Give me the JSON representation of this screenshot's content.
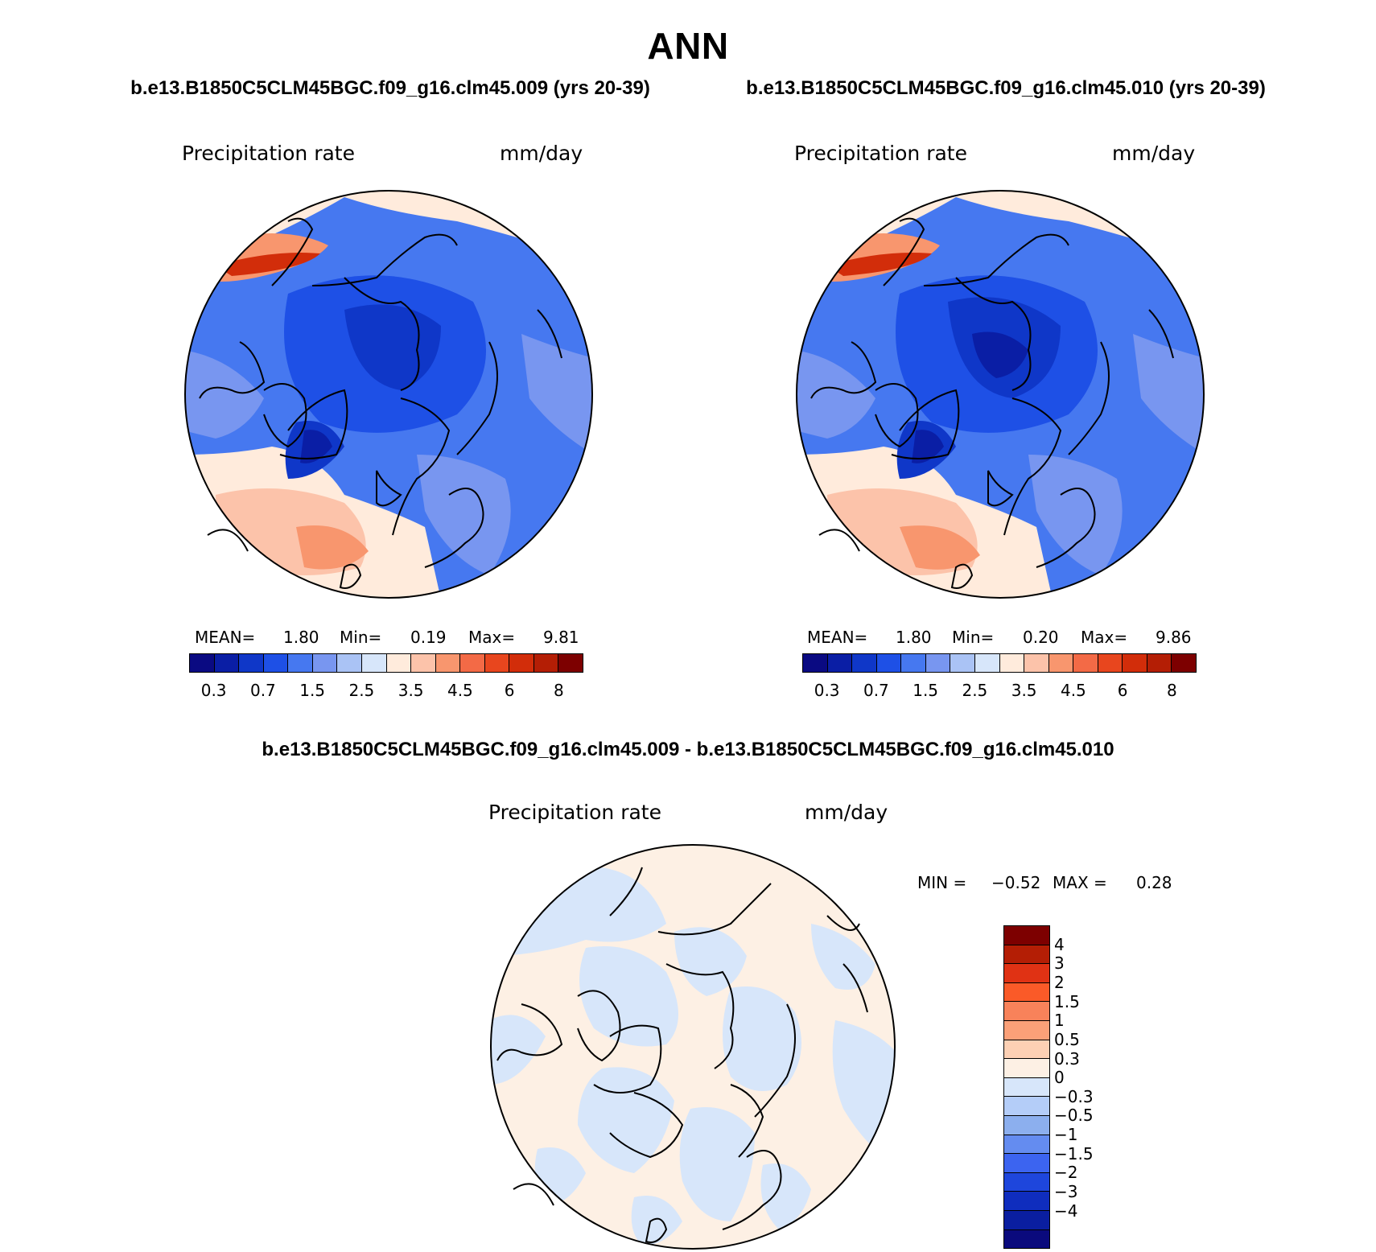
{
  "season_title": "ANN",
  "panels": [
    {
      "case_title": "b.e13.B1850C5CLM45BGC.f09_g16.clm45.009 (yrs 20-39)",
      "variable": "Precipitation rate",
      "units": "mm/day",
      "stats": {
        "mean_label": "MEAN=",
        "mean": "1.80",
        "min_label": "Min=",
        "min": "0.19",
        "max_label": "Max=",
        "max": "9.81"
      }
    },
    {
      "case_title": "b.e13.B1850C5CLM45BGC.f09_g16.clm45.010 (yrs 20-39)",
      "variable": "Precipitation rate",
      "units": "mm/day",
      "stats": {
        "mean_label": "MEAN=",
        "mean": "1.80",
        "min_label": "Min=",
        "min": "0.20",
        "max_label": "Max=",
        "max": "9.86"
      }
    }
  ],
  "diff_panel": {
    "title": "b.e13.B1850C5CLM45BGC.f09_g16.clm45.009 - b.e13.B1850C5CLM45BGC.f09_g16.clm45.010",
    "variable": "Precipitation rate",
    "units": "mm/day",
    "stats": {
      "min_label": "MIN =",
      "min": "−0.52",
      "max_label": "MAX =",
      "max": "0.28"
    }
  },
  "colorbar": {
    "colors": [
      "#0a0a82",
      "#0a1ea5",
      "#0f37c8",
      "#1e50e6",
      "#4678f0",
      "#7896f0",
      "#aac3f5",
      "#d7e6fa",
      "#ffebdc",
      "#fcc3aa",
      "#f8966e",
      "#f36a46",
      "#e8461e",
      "#d22d0a",
      "#b41e05",
      "#7d0000"
    ],
    "tick_labels": [
      "0.3",
      "0.7",
      "1.5",
      "2.5",
      "3.5",
      "4.5",
      "6",
      "8"
    ]
  },
  "diff_colorbar": {
    "colors": [
      "#7d0000",
      "#b41e05",
      "#e03214",
      "#fa5a28",
      "#f8825a",
      "#fba078",
      "#fdd0b4",
      "#fdf0e4",
      "#d7e6fa",
      "#b4cdf8",
      "#8cafee",
      "#648cf0",
      "#3c64f0",
      "#1e46dc",
      "#0f2dbe",
      "#0a1ea0",
      "#0a0a7d"
    ],
    "tick_labels": [
      "4",
      "3",
      "2",
      "1.5",
      "1",
      "0.5",
      "0.3",
      "0",
      "−0.3",
      "−0.5",
      "−1",
      "−1.5",
      "−2",
      "−3",
      "−4"
    ]
  }
}
